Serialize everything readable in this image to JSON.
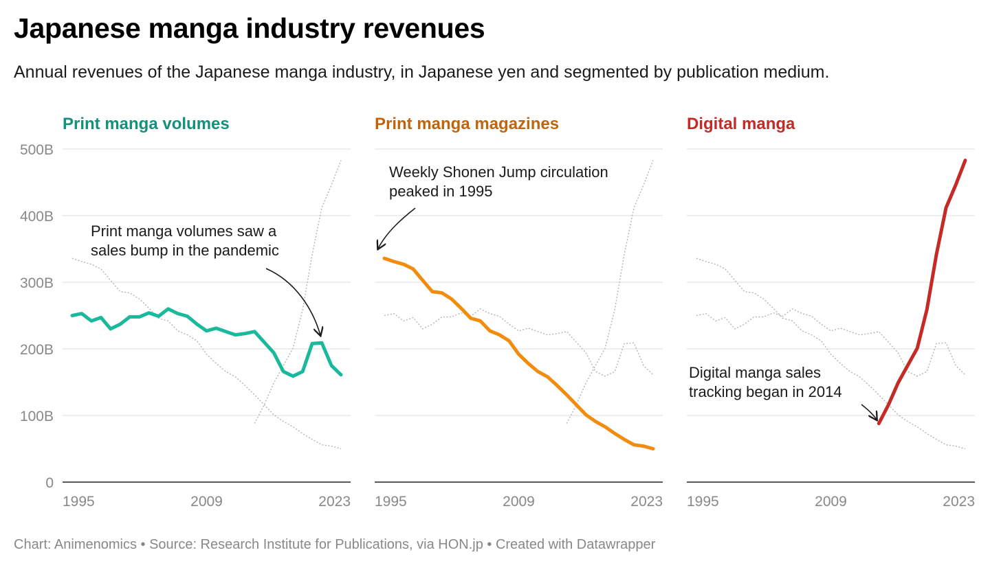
{
  "title": "Japanese manga industry revenues",
  "subtitle": "Annual revenues of the Japanese manga industry, in Japanese yen and segmented by publication medium.",
  "footer": "Chart: Animenomics • Source: Research Institute for Publications, via HON.jp • Created with Datawrapper",
  "chart_data": {
    "type": "line",
    "unit": "JPY",
    "years": [
      1995,
      1996,
      1997,
      1998,
      1999,
      2000,
      2001,
      2002,
      2003,
      2004,
      2005,
      2006,
      2007,
      2008,
      2009,
      2010,
      2011,
      2012,
      2013,
      2014,
      2015,
      2016,
      2017,
      2018,
      2019,
      2020,
      2021,
      2022,
      2023,
      2024
    ],
    "ylim": [
      0,
      500
    ],
    "ytick_values": [
      0,
      100,
      200,
      300,
      400,
      500
    ],
    "ytick_labels": [
      "0",
      "100B",
      "200B",
      "300B",
      "400B",
      "500B"
    ],
    "xtick_values": [
      1995,
      2009,
      2023
    ],
    "xtick_labels": [
      "1995",
      "2009",
      "2023"
    ],
    "series": [
      {
        "name": "Print manga volumes",
        "color": "#1ab99c",
        "title_color": "#14907b",
        "values": [
          250,
          253,
          242,
          247,
          230,
          237,
          248,
          248,
          254,
          249,
          260,
          253,
          249,
          237,
          227,
          231,
          226,
          221,
          223,
          226,
          210,
          194,
          166,
          159,
          166,
          208,
          209,
          175,
          161,
          null
        ]
      },
      {
        "name": "Print manga magazines",
        "color": "#f28c0f",
        "title_color": "#c0650d",
        "values": [
          336,
          331,
          327,
          320,
          303,
          286,
          284,
          275,
          261,
          246,
          242,
          227,
          221,
          212,
          192,
          178,
          166,
          158,
          145,
          131,
          116,
          101,
          91,
          83,
          73,
          64,
          56,
          54,
          50,
          null
        ]
      },
      {
        "name": "Digital manga",
        "color": "#c42a26",
        "title_color": "#c42a26",
        "values": [
          null,
          null,
          null,
          null,
          null,
          null,
          null,
          null,
          null,
          null,
          null,
          null,
          null,
          null,
          null,
          null,
          null,
          null,
          null,
          88,
          116,
          149,
          175,
          201,
          259,
          342,
          412,
          446,
          483,
          null
        ]
      }
    ],
    "annotations": [
      {
        "panel": 0,
        "lines": [
          "Print manga volumes saw a",
          "sales bump in the pandemic"
        ]
      },
      {
        "panel": 1,
        "lines": [
          "Weekly Shonen Jump circulation",
          "peaked in 1995"
        ]
      },
      {
        "panel": 2,
        "lines": [
          "Digital manga sales",
          "tracking began in 2014"
        ]
      }
    ]
  }
}
